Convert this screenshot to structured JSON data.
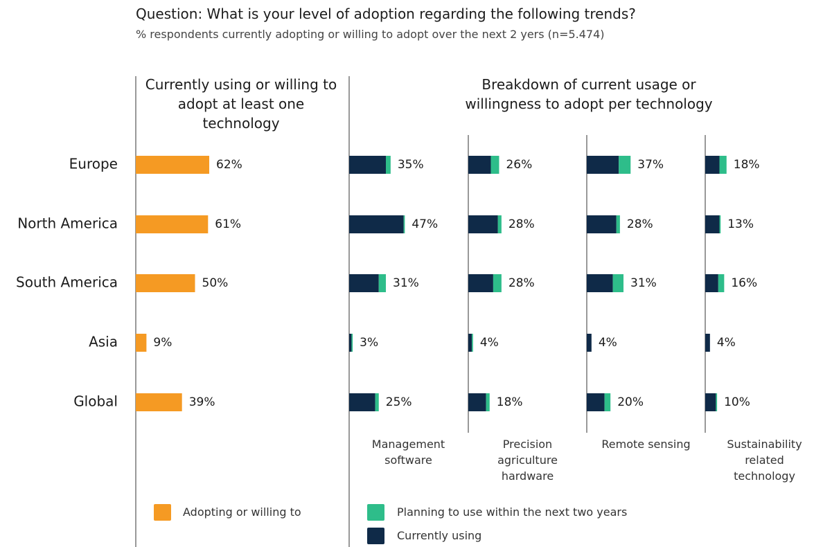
{
  "title": "Question: What is your level of adoption regarding the following trends?",
  "subtitle": "% respondents currently adopting or willing to adopt over the next 2 yers (n=5.474)",
  "breakdown_title": "Breakdown of current usage or willingness to adopt per technology",
  "chart_data": [
    {
      "type": "bar",
      "orientation": "horizontal",
      "title": "Currently using or willing to adopt at least one technology",
      "categories": [
        "Europe",
        "North America",
        "South America",
        "Asia",
        "Global"
      ],
      "xlim": [
        0,
        100
      ],
      "series": [
        {
          "name": "Adopting or willing to",
          "color": "#f59a23",
          "values": [
            62,
            61,
            50,
            9,
            39
          ],
          "value_labels": [
            "62%",
            "61%",
            "50%",
            "9%",
            "39%"
          ]
        }
      ]
    },
    {
      "type": "stacked_bar",
      "orientation": "horizontal",
      "title": "Management software",
      "xlim": [
        0,
        100
      ],
      "total_labels": [
        "35%",
        "47%",
        "31%",
        "3%",
        "25%"
      ],
      "series": [
        {
          "name": "Currently using",
          "color": "#0f2a48",
          "values": [
            31,
            46,
            25,
            2,
            22
          ]
        },
        {
          "name": "Planning to use within the next two years",
          "color": "#2ebd8a",
          "values": [
            4,
            1,
            6,
            1,
            3
          ]
        }
      ]
    },
    {
      "type": "stacked_bar",
      "orientation": "horizontal",
      "title": "Precision agriculture hardware",
      "xlim": [
        0,
        100
      ],
      "total_labels": [
        "26%",
        "28%",
        "28%",
        "4%",
        "18%"
      ],
      "series": [
        {
          "name": "Currently using",
          "color": "#0f2a48",
          "values": [
            19,
            25,
            21,
            3,
            15
          ]
        },
        {
          "name": "Planning to use within the next two years",
          "color": "#2ebd8a",
          "values": [
            7,
            3,
            7,
            1,
            3
          ]
        }
      ]
    },
    {
      "type": "stacked_bar",
      "orientation": "horizontal",
      "title": "Remote sensing",
      "xlim": [
        0,
        100
      ],
      "total_labels": [
        "37%",
        "28%",
        "31%",
        "4%",
        "20%"
      ],
      "series": [
        {
          "name": "Currently using",
          "color": "#0f2a48",
          "values": [
            27,
            25,
            22,
            4,
            15
          ]
        },
        {
          "name": "Planning to use within the next two years",
          "color": "#2ebd8a",
          "values": [
            10,
            3,
            9,
            0,
            5
          ]
        }
      ]
    },
    {
      "type": "stacked_bar",
      "orientation": "horizontal",
      "title": "Sustainability related technology",
      "xlim": [
        0,
        100
      ],
      "total_labels": [
        "18%",
        "13%",
        "16%",
        "4%",
        "10%"
      ],
      "series": [
        {
          "name": "Currently using",
          "color": "#0f2a48",
          "values": [
            12,
            12,
            11,
            4,
            9
          ]
        },
        {
          "name": "Planning to use within the next two years",
          "color": "#2ebd8a",
          "values": [
            6,
            1,
            5,
            0,
            1
          ]
        }
      ]
    }
  ]
}
